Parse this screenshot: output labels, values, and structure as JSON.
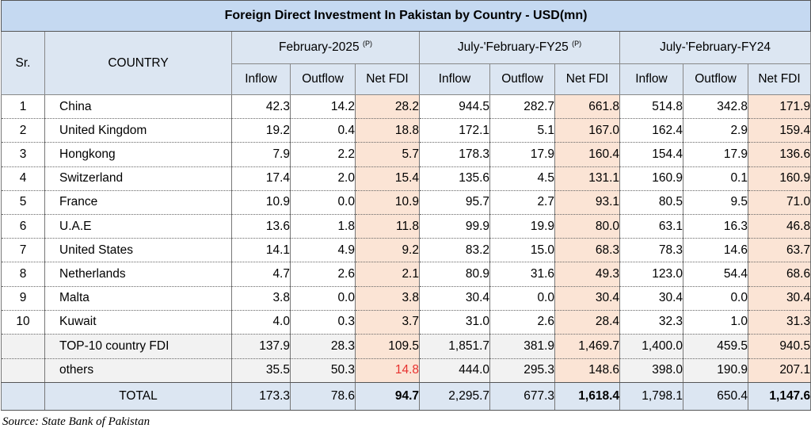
{
  "title": "Foreign Direct Investment In Pakistan by Country - USD(mn)",
  "headers": {
    "sr": "Sr.",
    "country": "COUNTRY",
    "groups": [
      {
        "label": "February-2025",
        "mark": "(P)"
      },
      {
        "label": "July-'February-FY25",
        "mark": "(P)"
      },
      {
        "label": "July-'February-FY24",
        "mark": ""
      }
    ],
    "sub": [
      "Inflow",
      "Outflow",
      "Net FDI",
      "Inflow",
      "Outflow",
      "Net FDI",
      "Inflow",
      "Outflow",
      "Net FDI"
    ]
  },
  "rows": [
    {
      "sr": "1",
      "country": "China",
      "v": [
        "42.3",
        "14.2",
        "28.2",
        "944.5",
        "282.7",
        "661.8",
        "514.8",
        "342.8",
        "171.9"
      ]
    },
    {
      "sr": "2",
      "country": "United Kingdom",
      "v": [
        "19.2",
        "0.4",
        "18.8",
        "172.1",
        "5.1",
        "167.0",
        "162.4",
        "2.9",
        "159.4"
      ]
    },
    {
      "sr": "3",
      "country": "Hongkong",
      "v": [
        "7.9",
        "2.2",
        "5.7",
        "178.3",
        "17.9",
        "160.4",
        "154.4",
        "17.9",
        "136.6"
      ]
    },
    {
      "sr": "4",
      "country": "Switzerland",
      "v": [
        "17.4",
        "2.0",
        "15.4",
        "135.6",
        "4.5",
        "131.1",
        "160.9",
        "0.1",
        "160.9"
      ]
    },
    {
      "sr": "5",
      "country": "France",
      "v": [
        "10.9",
        "0.0",
        "10.9",
        "95.7",
        "2.7",
        "93.1",
        "80.5",
        "9.5",
        "71.0"
      ]
    },
    {
      "sr": "6",
      "country": "U.A.E",
      "v": [
        "13.6",
        "1.8",
        "11.8",
        "99.9",
        "19.9",
        "80.0",
        "63.1",
        "16.3",
        "46.8"
      ]
    },
    {
      "sr": "7",
      "country": "United States",
      "v": [
        "14.1",
        "4.9",
        "9.2",
        "83.2",
        "15.0",
        "68.3",
        "78.3",
        "14.6",
        "63.7"
      ]
    },
    {
      "sr": "8",
      "country": "Netherlands",
      "v": [
        "4.7",
        "2.6",
        "2.1",
        "80.9",
        "31.6",
        "49.3",
        "123.0",
        "54.4",
        "68.6"
      ]
    },
    {
      "sr": "9",
      "country": "Malta",
      "v": [
        "3.8",
        "0.0",
        "3.8",
        "30.4",
        "0.0",
        "30.4",
        "30.4",
        "0.0",
        "30.4"
      ]
    },
    {
      "sr": "10",
      "country": "Kuwait",
      "v": [
        "4.0",
        "0.3",
        "3.7",
        "31.0",
        "2.6",
        "28.4",
        "32.3",
        "1.0",
        "31.3"
      ]
    }
  ],
  "top10": {
    "label": "TOP-10 country FDI",
    "v": [
      "137.9",
      "28.3",
      "109.5",
      "1,851.7",
      "381.9",
      "1,469.7",
      "1,400.0",
      "459.5",
      "940.5"
    ]
  },
  "others": {
    "label": "others",
    "v": [
      "35.5",
      "50.3",
      "14.8",
      "444.0",
      "295.3",
      "148.6",
      "398.0",
      "190.9",
      "207.1"
    ]
  },
  "total": {
    "label": "TOTAL",
    "v": [
      "173.3",
      "78.6",
      "94.7",
      "2,295.7",
      "677.3",
      "1,618.4",
      "1,798.1",
      "650.4",
      "1,147.6"
    ]
  },
  "source": "Source: State Bank of Pakistan",
  "colors": {
    "title_bg": "#c5d9f1",
    "header_bg": "#dce6f2",
    "net_bg": "#fbe4d5",
    "negative_text": "#e8312e"
  }
}
